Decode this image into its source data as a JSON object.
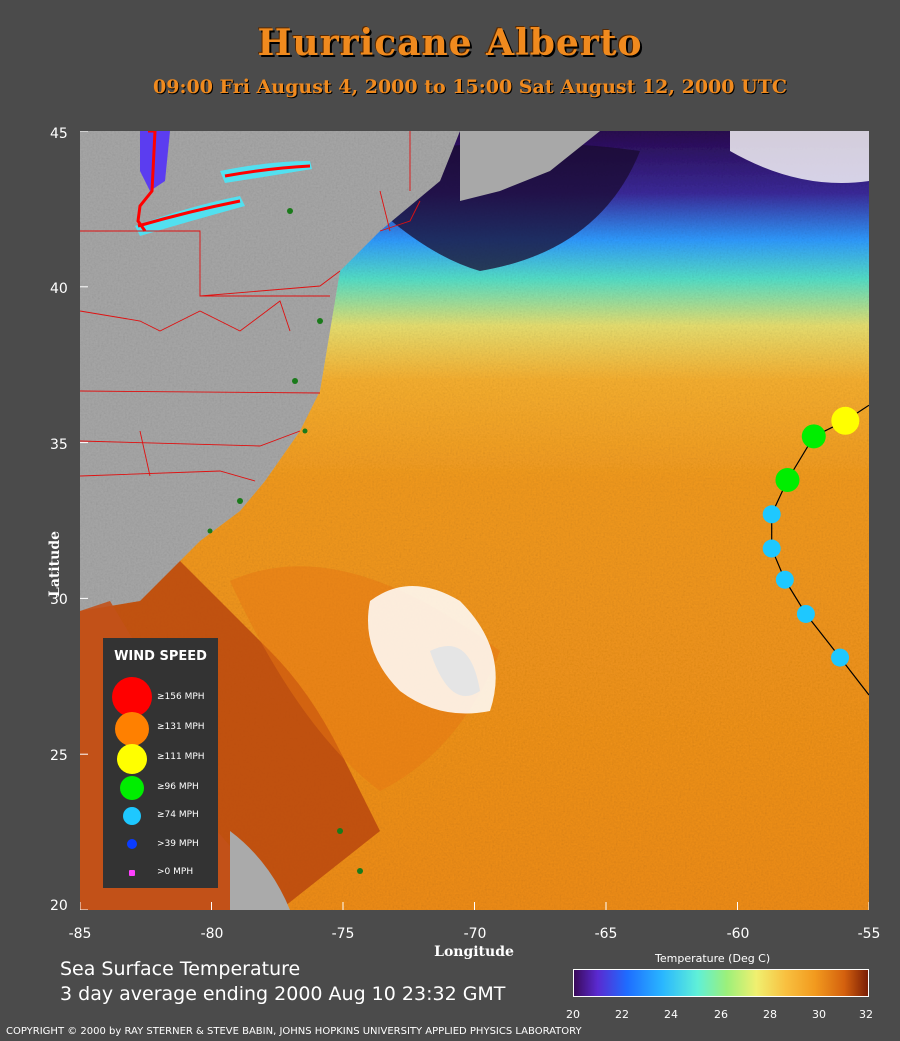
{
  "title": "Hurricane Alberto",
  "subtitle": "09:00 Fri August  4, 2000 to 15:00 Sat August 12, 2000  UTC",
  "axes": {
    "xlabel": "Longitude",
    "ylabel": "Latitude",
    "x_ticks": [
      "-85",
      "-80",
      "-75",
      "-70",
      "-65",
      "-60",
      "-55"
    ],
    "y_ticks": [
      "45",
      "40",
      "35",
      "30",
      "25",
      "20"
    ],
    "x_range": [
      -85,
      -55
    ],
    "y_range": [
      20,
      45
    ]
  },
  "legend": {
    "title": "WIND SPEED",
    "items": [
      {
        "label": "≥156 MPH",
        "color": "#ff0000"
      },
      {
        "label": "≥131 MPH",
        "color": "#ff8000"
      },
      {
        "label": "≥111 MPH",
        "color": "#ffff00"
      },
      {
        "label": "≥96 MPH",
        "color": "#00ee00"
      },
      {
        "label": "≥74 MPH",
        "color": "#1ec8ff"
      },
      {
        "label": ">39 MPH",
        "color": "#0a3cff"
      },
      {
        "label": ">0 MPH",
        "color": "#ff40ff"
      }
    ]
  },
  "caption": {
    "line1": "Sea Surface Temperature",
    "line2": "3 day average ending 2000 Aug 10 23:32 GMT"
  },
  "colorbar": {
    "title": "Temperature (Deg C)",
    "ticks": [
      "20",
      "22",
      "24",
      "26",
      "28",
      "30",
      "32"
    ]
  },
  "copyright": "COPYRIGHT © 2000 by RAY STERNER & STEVE BABIN, JOHNS HOPKINS UNIVERSITY APPLIED PHYSICS LABORATORY",
  "chart_data": {
    "type": "scatter",
    "track_points": [
      {
        "lon": -55.9,
        "lat": 35.7,
        "category": "≥111 MPH"
      },
      {
        "lon": -57.1,
        "lat": 35.2,
        "category": "≥96 MPH"
      },
      {
        "lon": -58.1,
        "lat": 33.8,
        "category": "≥96 MPH"
      },
      {
        "lon": -58.7,
        "lat": 32.7,
        "category": "≥74 MPH"
      },
      {
        "lon": -58.7,
        "lat": 31.6,
        "category": "≥74 MPH"
      },
      {
        "lon": -58.2,
        "lat": 30.6,
        "category": "≥74 MPH"
      },
      {
        "lon": -57.4,
        "lat": 29.5,
        "category": "≥74 MPH"
      },
      {
        "lon": -56.1,
        "lat": 28.1,
        "category": "≥74 MPH"
      }
    ],
    "track_line_ends": [
      {
        "lon": -55.0,
        "lat": 36.2
      },
      {
        "lon": -55.0,
        "lat": 26.9
      }
    ]
  }
}
